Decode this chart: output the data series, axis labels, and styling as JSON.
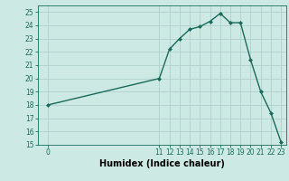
{
  "x": [
    0,
    11,
    12,
    13,
    14,
    15,
    16,
    17,
    18,
    19,
    20,
    21,
    22,
    23
  ],
  "y": [
    18,
    20,
    22.2,
    23,
    23.7,
    23.9,
    24.3,
    24.9,
    24.2,
    24.2,
    21.4,
    19,
    17.4,
    15.2
  ],
  "line_color": "#1a6b5a",
  "marker": "D",
  "marker_size": 2,
  "bg_color": "#cce9e4",
  "grid_color": "#afd0cc",
  "xlabel": "Humidex (Indice chaleur)",
  "xlim": [
    -1,
    23.5
  ],
  "ylim": [
    15,
    25.5
  ],
  "yticks": [
    15,
    16,
    17,
    18,
    19,
    20,
    21,
    22,
    23,
    24,
    25
  ],
  "xticks": [
    0,
    11,
    12,
    13,
    14,
    15,
    16,
    17,
    18,
    19,
    20,
    21,
    22,
    23
  ],
  "tick_label_fontsize": 5.5,
  "xlabel_fontsize": 7,
  "line_width": 1.0
}
